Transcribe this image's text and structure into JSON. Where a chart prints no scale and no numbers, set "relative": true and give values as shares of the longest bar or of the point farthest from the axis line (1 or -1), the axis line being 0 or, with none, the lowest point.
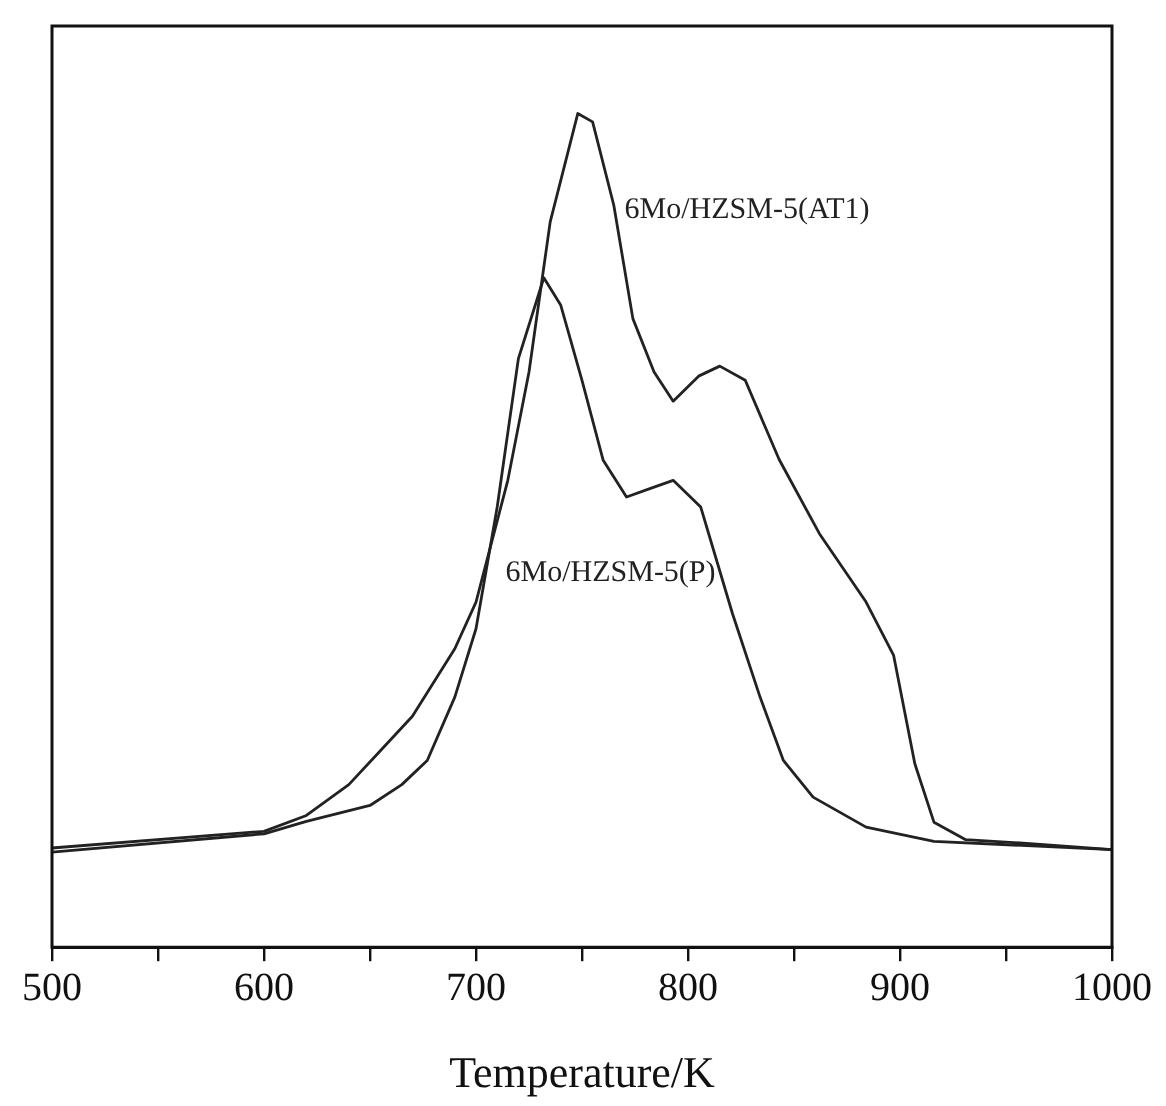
{
  "chart_data": {
    "type": "line",
    "xlabel": "Temperature/K",
    "relative": true,
    "xlim": [
      500,
      1000
    ],
    "xticks": [
      500,
      {
        "value": 550,
        "label": null
      },
      600,
      {
        "value": 650,
        "label": null
      },
      700,
      {
        "value": 750,
        "label": null
      },
      800,
      {
        "value": 850,
        "label": null
      },
      900,
      {
        "value": 950,
        "label": null
      },
      1000
    ],
    "grid": false,
    "legend": false,
    "marker": "none",
    "line_style": "solid",
    "series": [
      {
        "name": "6Mo/HZSM-5(AT1)",
        "color": "#222222",
        "x": [
          500,
          600,
          620,
          640,
          655,
          670,
          690,
          700,
          715,
          725,
          735,
          748,
          755,
          765,
          774,
          784,
          793,
          805,
          815,
          827,
          843,
          862,
          884,
          897,
          907,
          916,
          931,
          963,
          1000
        ],
        "values": [
          0.119,
          0.139,
          0.158,
          0.195,
          0.236,
          0.277,
          0.358,
          0.414,
          0.56,
          0.69,
          0.87,
          1.0,
          0.99,
          0.89,
          0.754,
          0.69,
          0.655,
          0.685,
          0.697,
          0.68,
          0.585,
          0.496,
          0.414,
          0.35,
          0.22,
          0.15,
          0.129,
          0.124,
          0.117
        ]
      },
      {
        "name": "6Mo/HZSM-5(P)",
        "color": "#222222",
        "x": [
          500,
          600,
          620,
          650,
          665,
          677,
          690,
          700,
          710,
          720,
          732,
          740,
          750,
          760,
          771,
          782,
          793,
          806,
          821,
          834,
          845,
          859,
          884,
          916,
          1000
        ],
        "values": [
          0.114,
          0.136,
          0.151,
          0.17,
          0.195,
          0.224,
          0.3,
          0.382,
          0.528,
          0.706,
          0.803,
          0.77,
          0.68,
          0.584,
          0.54,
          0.55,
          0.56,
          0.528,
          0.4,
          0.3,
          0.224,
          0.18,
          0.144,
          0.127,
          0.117
        ]
      }
    ]
  }
}
